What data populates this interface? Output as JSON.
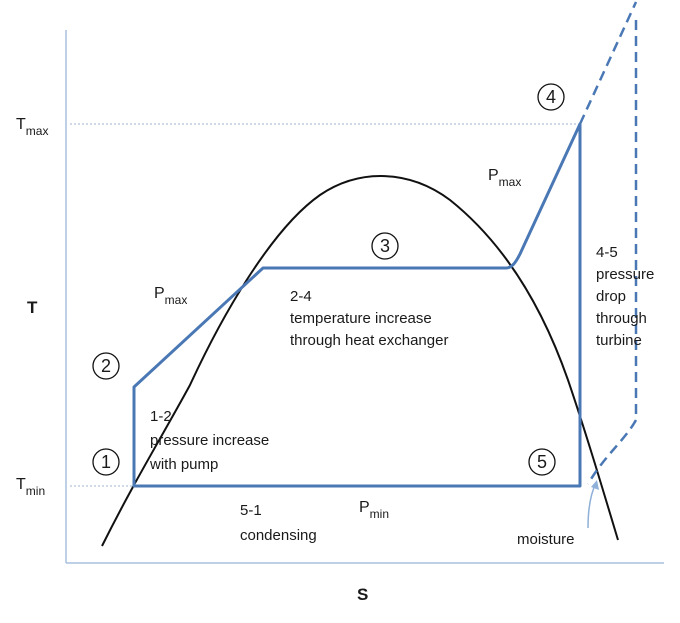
{
  "axes": {
    "y_label": "T",
    "x_label": "S",
    "tmax_main": "T",
    "tmax_sub": "max",
    "tmin_main": "T",
    "tmin_sub": "min"
  },
  "points": [
    {
      "id": "1",
      "label": "1"
    },
    {
      "id": "2",
      "label": "2"
    },
    {
      "id": "3",
      "label": "3"
    },
    {
      "id": "4",
      "label": "4"
    },
    {
      "id": "5",
      "label": "5"
    }
  ],
  "pressure_labels": {
    "pmax_left_main": "P",
    "pmax_left_sub": "max",
    "pmax_right_main": "P",
    "pmax_right_sub": "max",
    "pmin_main": "P",
    "pmin_sub": "min"
  },
  "process_notes": {
    "p12": [
      "1-2",
      "pressure increase",
      "with pump"
    ],
    "p24": [
      "2-4",
      "temperature increase",
      "through heat exchanger"
    ],
    "p45": [
      "4-5",
      "pressure",
      "drop",
      "through",
      "turbine"
    ],
    "p51": [
      "5-1",
      "condensing"
    ],
    "moisture": "moisture"
  },
  "colors": {
    "cycle_line": "#4a78b5",
    "dome_line": "#111111",
    "axis_line": "#a9c1de",
    "dotted_guide": "#9db6d6",
    "text": "#1a1a1a"
  }
}
